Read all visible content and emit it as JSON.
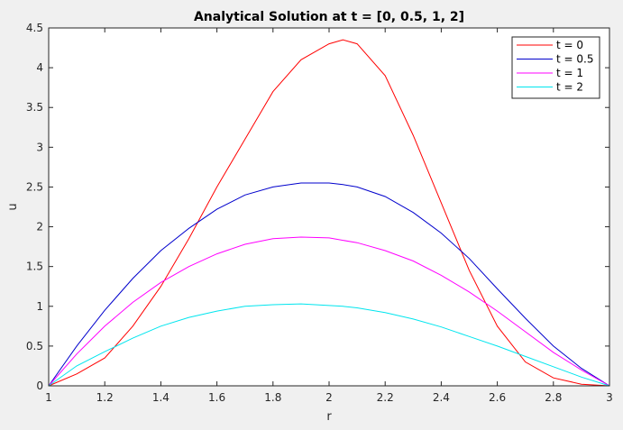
{
  "chart_data": {
    "type": "line",
    "title": "Analytical Solution at t = [0, 0.5, 1, 2]",
    "xlabel": "r",
    "ylabel": "u",
    "xlim": [
      1,
      3
    ],
    "ylim": [
      0,
      4.5
    ],
    "x_ticks": [
      1,
      1.2,
      1.4,
      1.6,
      1.8,
      2,
      2.2,
      2.4,
      2.6,
      2.8,
      3
    ],
    "y_ticks": [
      0,
      0.5,
      1,
      1.5,
      2,
      2.5,
      3,
      3.5,
      4,
      4.5
    ],
    "grid": false,
    "legend_position": "top-right",
    "x": [
      1.0,
      1.1,
      1.2,
      1.3,
      1.4,
      1.5,
      1.6,
      1.7,
      1.8,
      1.9,
      2.0,
      2.05,
      2.1,
      2.2,
      2.3,
      2.4,
      2.5,
      2.6,
      2.7,
      2.8,
      2.9,
      3.0
    ],
    "series": [
      {
        "name": "t = 0",
        "color": "#ff0000",
        "values": [
          0,
          0.15,
          0.35,
          0.75,
          1.25,
          1.85,
          2.5,
          3.1,
          3.7,
          4.1,
          4.3,
          4.35,
          4.3,
          3.9,
          3.15,
          2.3,
          1.45,
          0.75,
          0.3,
          0.1,
          0.02,
          0
        ]
      },
      {
        "name": "t = 0.5",
        "color": "#0000cc",
        "values": [
          0,
          0.5,
          0.95,
          1.35,
          1.7,
          1.98,
          2.22,
          2.4,
          2.5,
          2.55,
          2.55,
          2.53,
          2.5,
          2.38,
          2.18,
          1.92,
          1.6,
          1.22,
          0.85,
          0.5,
          0.22,
          0
        ]
      },
      {
        "name": "t = 1",
        "color": "#ff00ff",
        "values": [
          0,
          0.4,
          0.75,
          1.05,
          1.3,
          1.5,
          1.66,
          1.78,
          1.85,
          1.87,
          1.86,
          1.83,
          1.8,
          1.7,
          1.57,
          1.39,
          1.18,
          0.94,
          0.68,
          0.42,
          0.2,
          0
        ]
      },
      {
        "name": "t = 2",
        "color": "#00e5ee",
        "values": [
          0,
          0.25,
          0.43,
          0.6,
          0.75,
          0.86,
          0.94,
          1.0,
          1.02,
          1.03,
          1.01,
          1.0,
          0.98,
          0.92,
          0.84,
          0.74,
          0.62,
          0.5,
          0.37,
          0.24,
          0.11,
          0
        ]
      }
    ]
  }
}
